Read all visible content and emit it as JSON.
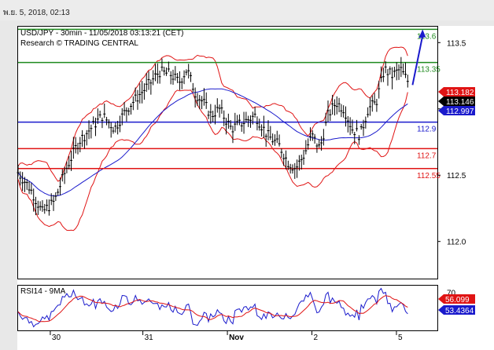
{
  "window": {
    "timestamp": "พ.ย. 5, 2018, 02:13"
  },
  "chart_data": [
    {
      "type": "line",
      "subtype": "candlestick",
      "title": "USD/JPY - 30min - 11/05/2018 03:13:21 (CET)",
      "subtitle": "Research © TRADING CENTRAL",
      "ylim": [
        111.72,
        113.62
      ],
      "yticks": [
        "113.5",
        "113.0",
        "112.5",
        "112.0"
      ],
      "ytick_values": [
        113.5,
        113.0,
        112.5,
        112.0
      ],
      "xticks": [
        "30",
        "31",
        "Nov",
        "2",
        "5"
      ],
      "xtick_positions": [
        8,
        31,
        52,
        73,
        94
      ],
      "grid": false,
      "price": {
        "start": 112.25,
        "points": [
          [
            0,
            112.52
          ],
          [
            3,
            112.4
          ],
          [
            6,
            112.22
          ],
          [
            9,
            112.3
          ],
          [
            12,
            112.55
          ],
          [
            15,
            112.75
          ],
          [
            18,
            112.85
          ],
          [
            21,
            112.95
          ],
          [
            24,
            112.85
          ],
          [
            27,
            113.0
          ],
          [
            30,
            113.1
          ],
          [
            33,
            113.2
          ],
          [
            35,
            113.28
          ],
          [
            38,
            113.26
          ],
          [
            40,
            113.2
          ],
          [
            42,
            113.3
          ],
          [
            44,
            113.12
          ],
          [
            46,
            113.05
          ],
          [
            48,
            112.95
          ],
          [
            50,
            113.0
          ],
          [
            53,
            112.85
          ],
          [
            56,
            112.9
          ],
          [
            59,
            112.95
          ],
          [
            62,
            112.8
          ],
          [
            65,
            112.72
          ],
          [
            67,
            112.6
          ],
          [
            69,
            112.55
          ],
          [
            71,
            112.65
          ],
          [
            73,
            112.8
          ],
          [
            75,
            112.7
          ],
          [
            77,
            112.95
          ],
          [
            79,
            113.05
          ],
          [
            81,
            113.0
          ],
          [
            83,
            112.85
          ],
          [
            85,
            112.8
          ],
          [
            87,
            113.0
          ],
          [
            89,
            113.05
          ],
          [
            91,
            113.3
          ],
          [
            93,
            113.25
          ],
          [
            95,
            113.3
          ],
          [
            97,
            113.2
          ]
        ]
      },
      "levels": [
        {
          "value": 113.6,
          "label": "113.6",
          "color": "#1e8a1e"
        },
        {
          "value": 113.35,
          "label": "113.35",
          "color": "#1e8a1e"
        },
        {
          "value": 112.9,
          "label": "112.9",
          "color": "#1a1acc"
        },
        {
          "value": 112.7,
          "label": "112.7",
          "color": "#e01414"
        },
        {
          "value": 112.55,
          "label": "112.55",
          "color": "#e01414"
        }
      ],
      "price_tags": [
        {
          "value": 113.182,
          "label": "113.182",
          "color": "#e01414"
        },
        {
          "value": 113.146,
          "label": "113.146",
          "color": "#000000"
        },
        {
          "value": 112.997,
          "label": "112.997",
          "color": "#1a1acc"
        }
      ],
      "forecast_arrow": {
        "from": [
          98,
          113.18
        ],
        "to": [
          100.5,
          113.6
        ]
      }
    },
    {
      "type": "line",
      "title": "RSI14 - 9MA",
      "yticks": [
        "70"
      ],
      "ytick_values": [
        70
      ],
      "ylim": [
        25,
        78
      ],
      "series": [
        {
          "name": "RSI14",
          "color": "#1a1acc"
        },
        {
          "name": "9MA",
          "color": "#e01414"
        }
      ],
      "price_tags": [
        {
          "value": 56.099,
          "label": "56.099",
          "color": "#e01414"
        },
        {
          "value": 53.4364,
          "label": "53.4364",
          "color": "#1a1acc"
        }
      ]
    }
  ]
}
